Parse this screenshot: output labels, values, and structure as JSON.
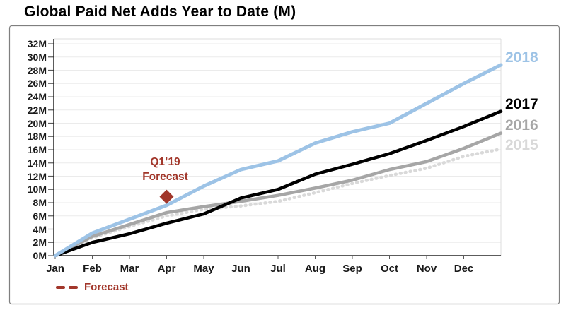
{
  "title": "Global Paid Net Adds Year to Date (M)",
  "colors": {
    "background": "#FFFFFF",
    "figure_border": "#7F7F7F",
    "axis": "#262626",
    "gridline": "#EBEBEB",
    "plot_inner_border": "#DCDCDC",
    "tick": "#595959",
    "forecast_red": "#A2372B"
  },
  "chart_data": {
    "type": "line",
    "title": "Global Paid Net Adds Year to Date (M)",
    "x_tick_labels": [
      "Jan",
      "Feb",
      "Mar",
      "Apr",
      "May",
      "Jun",
      "Jul",
      "Aug",
      "Sep",
      "Oct",
      "Nov",
      "Dec"
    ],
    "y_tick_labels": [
      "0M",
      "2M",
      "4M",
      "6M",
      "8M",
      "10M",
      "12M",
      "14M",
      "16M",
      "18M",
      "20M",
      "22M",
      "24M",
      "26M",
      "28M",
      "30M",
      "32M"
    ],
    "ylim": [
      0,
      32
    ],
    "y_step": 2,
    "grid": "horizontal",
    "x_unit": "month_index",
    "x_sample_positions": [
      0,
      1,
      2,
      3,
      4,
      5,
      6,
      7,
      8,
      9,
      10,
      11,
      12
    ],
    "series": [
      {
        "name": "2018",
        "color": "#9DC3E6",
        "style": "solid",
        "values": [
          0,
          3.4,
          5.5,
          7.6,
          10.5,
          13.0,
          14.3,
          17.0,
          18.7,
          20.0,
          23.0,
          26.0,
          28.8
        ]
      },
      {
        "name": "2017",
        "color": "#000000",
        "style": "solid",
        "values": [
          0,
          2.0,
          3.3,
          4.9,
          6.3,
          8.7,
          10.0,
          12.3,
          13.8,
          15.4,
          17.4,
          19.5,
          21.8
        ]
      },
      {
        "name": "2016",
        "color": "#A6A6A6",
        "style": "solid",
        "values": [
          0,
          2.9,
          4.7,
          6.5,
          7.4,
          8.2,
          9.1,
          10.2,
          11.4,
          13.0,
          14.2,
          16.2,
          18.5
        ]
      },
      {
        "name": "2015",
        "color": "#D9D9D9",
        "style": "dotted",
        "values": [
          0,
          2.7,
          4.4,
          6.0,
          7.0,
          7.5,
          8.2,
          9.5,
          10.9,
          12.1,
          13.2,
          15.0,
          16.1
        ]
      }
    ],
    "forecast": {
      "annotation_line1": "Q1’19",
      "annotation_line2": "Forecast",
      "x_month_index": 3,
      "value_m": 8.9,
      "marker": "diamond",
      "color": "#A2372B"
    },
    "legend": {
      "label": "Forecast",
      "style": "dashed",
      "color": "#A2372B",
      "position": "bottom-left"
    }
  }
}
